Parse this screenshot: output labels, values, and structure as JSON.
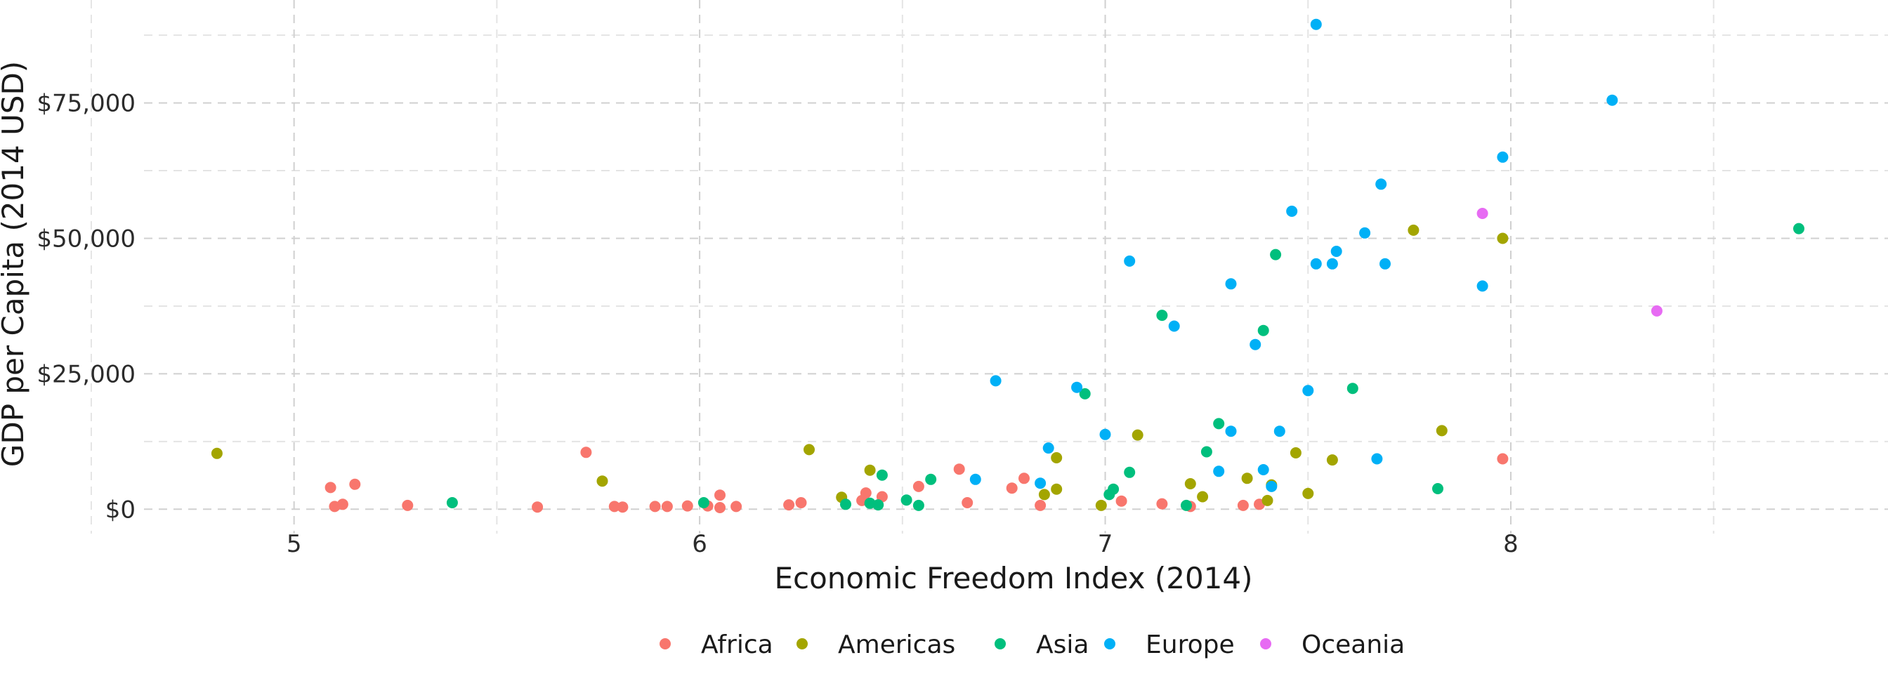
{
  "chart_data": {
    "type": "scatter",
    "title": "",
    "xlabel": "Economic Freedom Index (2014)",
    "ylabel": "GDP per Capita (2014 USD)",
    "xlim": [
      4.63,
      8.93
    ],
    "ylim": [
      -4500,
      94000
    ],
    "x_ticks": [
      5,
      6,
      7,
      8
    ],
    "x_tick_labels": [
      "5",
      "6",
      "7",
      "8"
    ],
    "y_ticks": [
      0,
      25000,
      50000,
      75000
    ],
    "y_tick_labels": [
      "$0",
      "$25,000",
      "$50,000",
      "$75,000"
    ],
    "grid": true,
    "legend_position": "bottom",
    "series": [
      {
        "name": "Africa",
        "color": "#F8766D",
        "points": [
          [
            5.09,
            4000
          ],
          [
            5.1,
            500
          ],
          [
            5.12,
            900
          ],
          [
            5.15,
            4600
          ],
          [
            5.28,
            700
          ],
          [
            5.6,
            400
          ],
          [
            5.72,
            10500
          ],
          [
            5.79,
            500
          ],
          [
            5.81,
            400
          ],
          [
            5.89,
            500
          ],
          [
            5.92,
            500
          ],
          [
            5.97,
            600
          ],
          [
            6.02,
            600
          ],
          [
            6.05,
            2600
          ],
          [
            6.05,
            300
          ],
          [
            6.09,
            500
          ],
          [
            6.22,
            800
          ],
          [
            6.25,
            1200
          ],
          [
            6.4,
            1600
          ],
          [
            6.41,
            3000
          ],
          [
            6.45,
            2300
          ],
          [
            6.54,
            4200
          ],
          [
            6.64,
            7400
          ],
          [
            6.66,
            1200
          ],
          [
            6.77,
            3900
          ],
          [
            6.8,
            5700
          ],
          [
            6.84,
            700
          ],
          [
            7.04,
            1500
          ],
          [
            7.14,
            1000
          ],
          [
            7.21,
            500
          ],
          [
            7.34,
            700
          ],
          [
            7.38,
            900
          ],
          [
            7.98,
            9300
          ]
        ]
      },
      {
        "name": "Americas",
        "color": "#A3A500",
        "points": [
          [
            4.81,
            10300
          ],
          [
            5.76,
            5200
          ],
          [
            6.27,
            11000
          ],
          [
            6.35,
            2200
          ],
          [
            6.42,
            7200
          ],
          [
            6.85,
            2700
          ],
          [
            6.88,
            9500
          ],
          [
            6.88,
            3700
          ],
          [
            6.99,
            700
          ],
          [
            7.08,
            13700
          ],
          [
            7.21,
            4700
          ],
          [
            7.24,
            2300
          ],
          [
            7.35,
            5700
          ],
          [
            7.4,
            1600
          ],
          [
            7.41,
            4500
          ],
          [
            7.47,
            10400
          ],
          [
            7.5,
            2900
          ],
          [
            7.56,
            9100
          ],
          [
            7.76,
            51500
          ],
          [
            7.83,
            14500
          ],
          [
            7.98,
            50000
          ]
        ]
      },
      {
        "name": "Asia",
        "color": "#00BF7D",
        "points": [
          [
            5.39,
            1200
          ],
          [
            6.01,
            1200
          ],
          [
            6.36,
            900
          ],
          [
            6.42,
            1100
          ],
          [
            6.44,
            800
          ],
          [
            6.45,
            6300
          ],
          [
            6.51,
            1700
          ],
          [
            6.54,
            700
          ],
          [
            6.57,
            5500
          ],
          [
            6.95,
            21300
          ],
          [
            7.01,
            2700
          ],
          [
            7.02,
            3700
          ],
          [
            7.06,
            6800
          ],
          [
            7.14,
            35800
          ],
          [
            7.2,
            700
          ],
          [
            7.25,
            10600
          ],
          [
            7.28,
            15800
          ],
          [
            7.39,
            33000
          ],
          [
            7.42,
            47000
          ],
          [
            7.61,
            22300
          ],
          [
            7.82,
            3800
          ],
          [
            8.71,
            51800
          ]
        ]
      },
      {
        "name": "Europe",
        "color": "#00B0F6",
        "points": [
          [
            6.68,
            5500
          ],
          [
            6.73,
            23700
          ],
          [
            6.84,
            4800
          ],
          [
            6.86,
            11300
          ],
          [
            6.93,
            22500
          ],
          [
            7.0,
            13800
          ],
          [
            7.06,
            45800
          ],
          [
            7.17,
            33800
          ],
          [
            7.28,
            7000
          ],
          [
            7.31,
            14400
          ],
          [
            7.31,
            41600
          ],
          [
            7.37,
            30400
          ],
          [
            7.39,
            7300
          ],
          [
            7.41,
            4200
          ],
          [
            7.43,
            14400
          ],
          [
            7.46,
            55000
          ],
          [
            7.5,
            21900
          ],
          [
            7.52,
            89500
          ],
          [
            7.52,
            45300
          ],
          [
            7.56,
            45300
          ],
          [
            7.57,
            47600
          ],
          [
            7.64,
            51000
          ],
          [
            7.67,
            9300
          ],
          [
            7.68,
            60000
          ],
          [
            7.69,
            45300
          ],
          [
            7.93,
            41200
          ],
          [
            7.98,
            65000
          ],
          [
            8.25,
            75500
          ]
        ]
      },
      {
        "name": "Oceania",
        "color": "#E76BF3",
        "points": [
          [
            7.93,
            54600
          ],
          [
            8.36,
            36600
          ]
        ]
      }
    ]
  }
}
